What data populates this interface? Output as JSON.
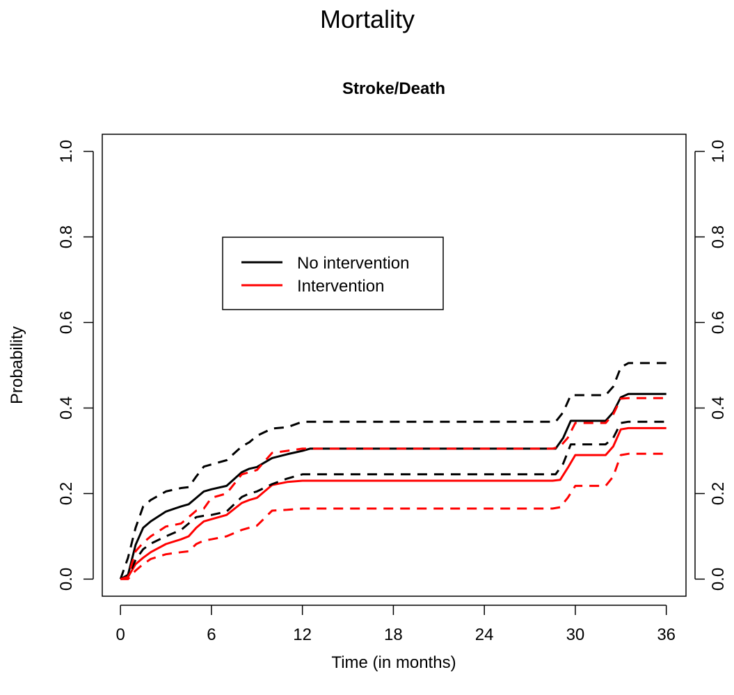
{
  "header": {
    "title": "Mortality"
  },
  "chart_data": {
    "type": "line",
    "title": "Stroke/Death",
    "xlabel": "Time (in months)",
    "ylabel": "Probability",
    "xlim": [
      -1.2,
      37.3
    ],
    "ylim": [
      -0.04,
      1.04
    ],
    "xticks": [
      0,
      6,
      12,
      18,
      24,
      30,
      36
    ],
    "xtick_labels": [
      "0",
      "6",
      "12",
      "18",
      "24",
      "30",
      "36"
    ],
    "yticks": [
      0,
      0.2,
      0.4,
      0.6,
      0.8,
      1.0
    ],
    "ytick_labels": [
      "0.0",
      "0.2",
      "0.4",
      "0.6",
      "0.8",
      "1.0"
    ],
    "right_axis": true,
    "grid": false,
    "legend": {
      "placement": "upper-left-center",
      "entries": [
        "No intervention",
        "Intervention"
      ]
    },
    "colors": {
      "no_intervention": "#000000",
      "intervention": "#ff0000"
    },
    "series": [
      {
        "name": "No intervention",
        "style": "solid",
        "color": "#000000",
        "points": [
          [
            0,
            0
          ],
          [
            0.5,
            0.01
          ],
          [
            1,
            0.08
          ],
          [
            1.5,
            0.12
          ],
          [
            2,
            0.135
          ],
          [
            3,
            0.158
          ],
          [
            4,
            0.17
          ],
          [
            4.5,
            0.175
          ],
          [
            5,
            0.19
          ],
          [
            5.5,
            0.205
          ],
          [
            6,
            0.21
          ],
          [
            7,
            0.218
          ],
          [
            8,
            0.25
          ],
          [
            8.5,
            0.258
          ],
          [
            9,
            0.262
          ],
          [
            10,
            0.283
          ],
          [
            11,
            0.292
          ],
          [
            12,
            0.3
          ],
          [
            12.5,
            0.305
          ],
          [
            28.7,
            0.305
          ],
          [
            29.2,
            0.33
          ],
          [
            29.7,
            0.37
          ],
          [
            32,
            0.37
          ],
          [
            32.5,
            0.39
          ],
          [
            33,
            0.425
          ],
          [
            33.5,
            0.433
          ],
          [
            36,
            0.433
          ]
        ]
      },
      {
        "name": "Intervention",
        "style": "solid",
        "color": "#ff0000",
        "points": [
          [
            0,
            0
          ],
          [
            0.5,
            0.005
          ],
          [
            1,
            0.035
          ],
          [
            1.5,
            0.05
          ],
          [
            2,
            0.063
          ],
          [
            3,
            0.082
          ],
          [
            4,
            0.093
          ],
          [
            4.5,
            0.1
          ],
          [
            5,
            0.12
          ],
          [
            5.5,
            0.135
          ],
          [
            6,
            0.14
          ],
          [
            7,
            0.15
          ],
          [
            8,
            0.178
          ],
          [
            8.5,
            0.185
          ],
          [
            9,
            0.19
          ],
          [
            10,
            0.22
          ],
          [
            11,
            0.227
          ],
          [
            12,
            0.23
          ],
          [
            28.5,
            0.23
          ],
          [
            29,
            0.232
          ],
          [
            29.5,
            0.26
          ],
          [
            30,
            0.29
          ],
          [
            32,
            0.29
          ],
          [
            32.5,
            0.31
          ],
          [
            33,
            0.35
          ],
          [
            33.5,
            0.353
          ],
          [
            36,
            0.353
          ]
        ]
      },
      {
        "name": "",
        "style": "dashed",
        "color": "#000000",
        "points": [
          [
            0,
            0
          ],
          [
            0.5,
            0.05
          ],
          [
            1,
            0.12
          ],
          [
            1.5,
            0.17
          ],
          [
            2,
            0.185
          ],
          [
            3,
            0.205
          ],
          [
            4,
            0.213
          ],
          [
            4.5,
            0.215
          ],
          [
            5,
            0.24
          ],
          [
            5.5,
            0.263
          ],
          [
            6,
            0.268
          ],
          [
            7,
            0.278
          ],
          [
            8,
            0.31
          ],
          [
            8.5,
            0.32
          ],
          [
            9,
            0.335
          ],
          [
            10,
            0.352
          ],
          [
            11,
            0.355
          ],
          [
            12,
            0.368
          ],
          [
            28.7,
            0.368
          ],
          [
            29.2,
            0.39
          ],
          [
            29.7,
            0.43
          ],
          [
            32,
            0.43
          ],
          [
            32.5,
            0.45
          ],
          [
            33,
            0.495
          ],
          [
            33.5,
            0.505
          ],
          [
            36,
            0.505
          ]
        ]
      },
      {
        "name": "",
        "style": "dashed",
        "color": "#000000",
        "points": [
          [
            0,
            0
          ],
          [
            0.5,
            0.005
          ],
          [
            1,
            0.045
          ],
          [
            1.5,
            0.07
          ],
          [
            2,
            0.083
          ],
          [
            3,
            0.1
          ],
          [
            4,
            0.115
          ],
          [
            4.5,
            0.13
          ],
          [
            5,
            0.145
          ],
          [
            5.5,
            0.148
          ],
          [
            6,
            0.15
          ],
          [
            7,
            0.158
          ],
          [
            8,
            0.192
          ],
          [
            8.5,
            0.2
          ],
          [
            9,
            0.205
          ],
          [
            10,
            0.222
          ],
          [
            11,
            0.235
          ],
          [
            12,
            0.245
          ],
          [
            28.7,
            0.245
          ],
          [
            29.2,
            0.27
          ],
          [
            29.7,
            0.315
          ],
          [
            32,
            0.315
          ],
          [
            32.5,
            0.33
          ],
          [
            33,
            0.365
          ],
          [
            33.5,
            0.368
          ],
          [
            36,
            0.368
          ]
        ]
      },
      {
        "name": "",
        "style": "dashed",
        "color": "#ff0000",
        "points": [
          [
            0,
            0
          ],
          [
            0.5,
            0.005
          ],
          [
            1,
            0.065
          ],
          [
            1.5,
            0.085
          ],
          [
            2,
            0.1
          ],
          [
            3,
            0.123
          ],
          [
            4,
            0.13
          ],
          [
            4.5,
            0.145
          ],
          [
            5,
            0.16
          ],
          [
            5.5,
            0.165
          ],
          [
            6,
            0.19
          ],
          [
            7,
            0.2
          ],
          [
            8,
            0.245
          ],
          [
            8.5,
            0.25
          ],
          [
            9,
            0.255
          ],
          [
            10,
            0.295
          ],
          [
            11,
            0.3
          ],
          [
            12,
            0.305
          ],
          [
            28.5,
            0.305
          ],
          [
            29,
            0.31
          ],
          [
            29.5,
            0.33
          ],
          [
            30,
            0.365
          ],
          [
            32,
            0.365
          ],
          [
            32.5,
            0.385
          ],
          [
            33,
            0.422
          ],
          [
            33.5,
            0.423
          ],
          [
            36,
            0.423
          ]
        ]
      },
      {
        "name": "",
        "style": "dashed",
        "color": "#ff0000",
        "points": [
          [
            0,
            0
          ],
          [
            0.5,
            0
          ],
          [
            1,
            0.02
          ],
          [
            1.5,
            0.035
          ],
          [
            2,
            0.047
          ],
          [
            3,
            0.058
          ],
          [
            4,
            0.063
          ],
          [
            4.5,
            0.065
          ],
          [
            5,
            0.082
          ],
          [
            5.5,
            0.09
          ],
          [
            6,
            0.093
          ],
          [
            7,
            0.1
          ],
          [
            8,
            0.115
          ],
          [
            8.5,
            0.12
          ],
          [
            9,
            0.125
          ],
          [
            10,
            0.16
          ],
          [
            11,
            0.162
          ],
          [
            12,
            0.165
          ],
          [
            28.5,
            0.165
          ],
          [
            29,
            0.168
          ],
          [
            29.5,
            0.19
          ],
          [
            30,
            0.218
          ],
          [
            32,
            0.218
          ],
          [
            32.5,
            0.24
          ],
          [
            33,
            0.29
          ],
          [
            33.5,
            0.293
          ],
          [
            36,
            0.293
          ]
        ]
      }
    ]
  }
}
